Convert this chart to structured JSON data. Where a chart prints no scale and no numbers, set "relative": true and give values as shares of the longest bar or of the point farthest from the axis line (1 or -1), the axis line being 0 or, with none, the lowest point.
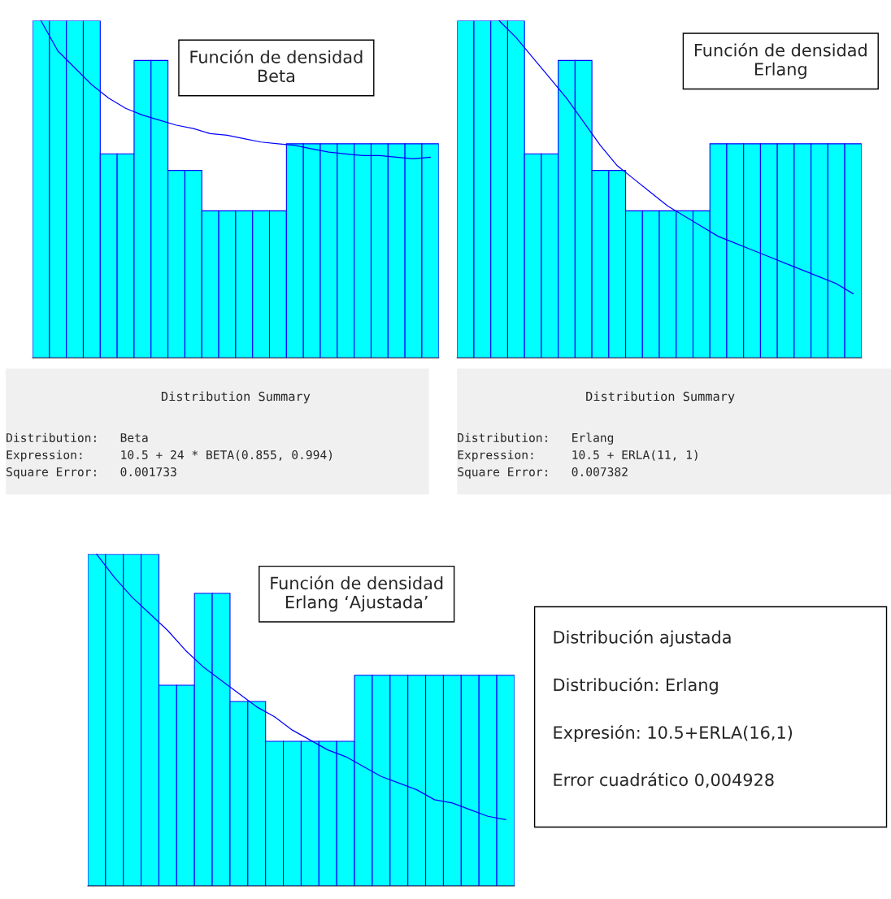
{
  "chart_data": [
    {
      "type": "bar",
      "relative": true,
      "categories": [
        null,
        null,
        null,
        null,
        null,
        null,
        null,
        null,
        null,
        null,
        null,
        null,
        null,
        null,
        null,
        null,
        null,
        null,
        null,
        null,
        null,
        null,
        null,
        null
      ],
      "series": [
        {
          "color": "#00ffff",
          "values": [
            1,
            1,
            1,
            1,
            0.605,
            0.605,
            0.882,
            0.882,
            0.556,
            0.556,
            0.436,
            0.436,
            0.436,
            0.436,
            0.436,
            0.635,
            0.635,
            0.635,
            0.635,
            0.635,
            0.635,
            0.635,
            0.635,
            0.635
          ]
        }
      ],
      "annotations": [
        "Función de densidad\nBeta",
        "Distribution Summary",
        "Distribution:   Beta",
        "Expression:     10.5 + 24 * BETA(0.855, 0.994)",
        "Square Error:   0.001733"
      ]
    },
    {
      "type": "line",
      "relative": true,
      "categories": [
        null,
        null,
        null,
        null,
        null,
        null,
        null,
        null,
        null,
        null,
        null,
        null,
        null,
        null,
        null,
        null,
        null,
        null,
        null,
        null,
        null,
        null,
        null,
        null
      ],
      "series": [
        {
          "color": "#0000ff",
          "values": [
            1.0,
            0.91,
            0.86,
            0.81,
            0.77,
            0.74,
            0.72,
            0.705,
            0.69,
            0.68,
            0.665,
            0.66,
            0.65,
            0.64,
            0.635,
            0.63,
            0.62,
            0.61,
            0.605,
            0.6,
            0.6,
            0.595,
            0.59,
            0.595
          ]
        }
      ]
    },
    {
      "type": "bar",
      "relative": true,
      "categories": [
        null,
        null,
        null,
        null,
        null,
        null,
        null,
        null,
        null,
        null,
        null,
        null,
        null,
        null,
        null,
        null,
        null,
        null,
        null,
        null,
        null,
        null,
        null,
        null
      ],
      "series": [
        {
          "color": "#00ffff",
          "values": [
            1,
            1,
            1,
            1,
            0.605,
            0.605,
            0.882,
            0.882,
            0.556,
            0.556,
            0.436,
            0.436,
            0.436,
            0.436,
            0.436,
            0.635,
            0.635,
            0.635,
            0.635,
            0.635,
            0.635,
            0.635,
            0.635,
            0.635
          ]
        }
      ],
      "annotations": [
        "Función de densidad\nErlang",
        "Distribution Summary",
        "Distribution:   Erlang",
        "Expression:     10.5 + ERLA(11, 1)",
        "Square Error:   0.007382"
      ]
    },
    {
      "type": "line",
      "relative": true,
      "categories": [
        null,
        null,
        null,
        null,
        null,
        null,
        null,
        null,
        null,
        null,
        null,
        null,
        null,
        null,
        null,
        null,
        null,
        null,
        null,
        null,
        null,
        null,
        null,
        null
      ],
      "series": [
        {
          "color": "#0000ff",
          "values": [
            null,
            null,
            1.0,
            0.95,
            0.89,
            0.83,
            0.77,
            0.7,
            0.63,
            0.57,
            0.53,
            0.49,
            0.45,
            0.42,
            0.39,
            0.36,
            0.34,
            0.32,
            0.3,
            0.28,
            0.26,
            0.24,
            0.22,
            0.19
          ]
        }
      ]
    },
    {
      "type": "bar",
      "relative": true,
      "categories": [
        null,
        null,
        null,
        null,
        null,
        null,
        null,
        null,
        null,
        null,
        null,
        null,
        null,
        null,
        null,
        null,
        null,
        null,
        null,
        null,
        null,
        null,
        null,
        null
      ],
      "series": [
        {
          "color": "#00ffff",
          "values": [
            1,
            1,
            1,
            1,
            0.605,
            0.605,
            0.882,
            0.882,
            0.556,
            0.556,
            0.436,
            0.436,
            0.436,
            0.436,
            0.436,
            0.635,
            0.635,
            0.635,
            0.635,
            0.635,
            0.635,
            0.635,
            0.635,
            0.635
          ]
        }
      ],
      "annotations": [
        "Función de densidad\nErlang ‘Ajustada’",
        "Distribución ajustada",
        "Distribución: Erlang",
        "Expresión: 10.5+ERLA(16,1)",
        "Error cuadrático 0,004928"
      ]
    },
    {
      "type": "line",
      "relative": true,
      "categories": [
        null,
        null,
        null,
        null,
        null,
        null,
        null,
        null,
        null,
        null,
        null,
        null,
        null,
        null,
        null,
        null,
        null,
        null,
        null,
        null,
        null,
        null,
        null,
        null
      ],
      "series": [
        {
          "color": "#0000ff",
          "values": [
            1.0,
            0.93,
            0.87,
            0.82,
            0.77,
            0.71,
            0.66,
            0.62,
            0.58,
            0.54,
            0.51,
            0.47,
            0.44,
            0.41,
            0.39,
            0.36,
            0.33,
            0.31,
            0.29,
            0.26,
            0.25,
            0.23,
            0.21,
            0.2
          ]
        }
      ]
    }
  ]
}
